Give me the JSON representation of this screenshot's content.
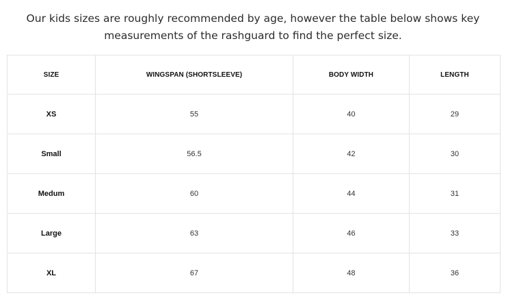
{
  "intro": {
    "line1": "Our kids sizes are roughly recommended by age, however the table below shows key",
    "line2": "measurements of the rashguard to find the perfect size."
  },
  "table": {
    "headers": [
      "SIZE",
      "WINGSPAN (SHORTSLEEVE)",
      "BODY WIDTH",
      "LENGTH"
    ],
    "rows": [
      [
        "XS",
        "55",
        "40",
        "29"
      ],
      [
        "Small",
        "56.5",
        "42",
        "30"
      ],
      [
        "Medum",
        "60",
        "44",
        "31"
      ],
      [
        "Large",
        "63",
        "46",
        "33"
      ],
      [
        "XL",
        "67",
        "48",
        "36"
      ]
    ]
  },
  "colors": {
    "border": "#e3e3e3",
    "text": "#2b2b2b"
  }
}
